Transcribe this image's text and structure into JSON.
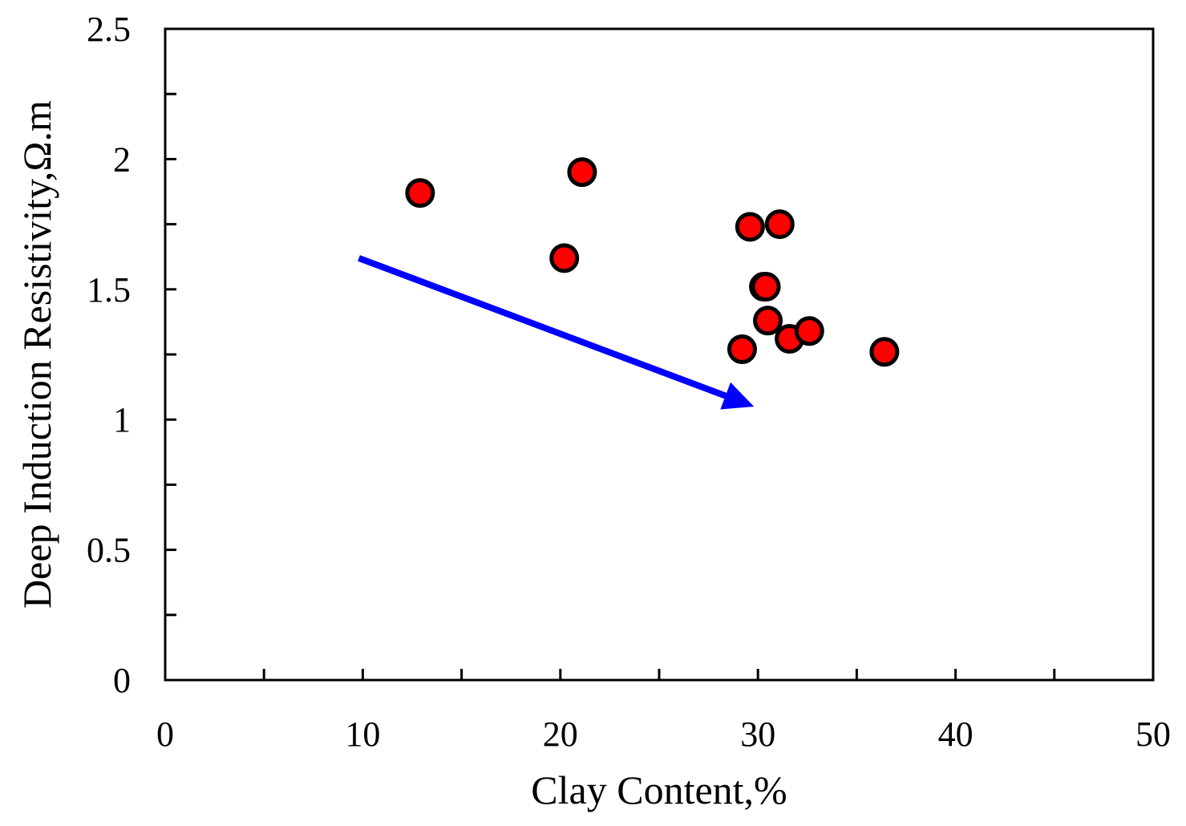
{
  "chart_data": {
    "type": "scatter",
    "xlabel": "Clay Content,%",
    "ylabel": "Deep Induction Resistivity,Ω.m",
    "xlim": [
      0,
      50
    ],
    "ylim": [
      0,
      2.5
    ],
    "x_ticks": [
      0,
      10,
      20,
      30,
      40,
      50
    ],
    "x_tick_labels": [
      "0",
      "10",
      "20",
      "30",
      "40",
      "50"
    ],
    "x_minor_step": 5,
    "y_ticks": [
      0,
      0.5,
      1,
      1.5,
      2,
      2.5
    ],
    "y_tick_labels": [
      "0",
      "0.5",
      "1",
      "1.5",
      "2",
      "2.5"
    ],
    "y_minor_step": 0.25,
    "grid": false,
    "series": [
      {
        "marker": "circle",
        "color": "#ff0000",
        "edge_color": "#000000",
        "points": [
          {
            "x": 12.9,
            "y": 1.87
          },
          {
            "x": 21.1,
            "y": 1.95
          },
          {
            "x": 20.2,
            "y": 1.62
          },
          {
            "x": 29.6,
            "y": 1.74
          },
          {
            "x": 31.1,
            "y": 1.75
          },
          {
            "x": 30.3,
            "y": 1.51
          },
          {
            "x": 30.4,
            "y": 1.51
          },
          {
            "x": 30.5,
            "y": 1.38
          },
          {
            "x": 31.6,
            "y": 1.31
          },
          {
            "x": 32.6,
            "y": 1.34
          },
          {
            "x": 29.2,
            "y": 1.27
          },
          {
            "x": 36.4,
            "y": 1.26
          }
        ]
      }
    ],
    "annotations": [
      {
        "type": "arrow",
        "color": "#0000ff",
        "from": {
          "x": 9.8,
          "y": 1.62
        },
        "to": {
          "x": 29.8,
          "y": 1.05
        }
      }
    ]
  }
}
